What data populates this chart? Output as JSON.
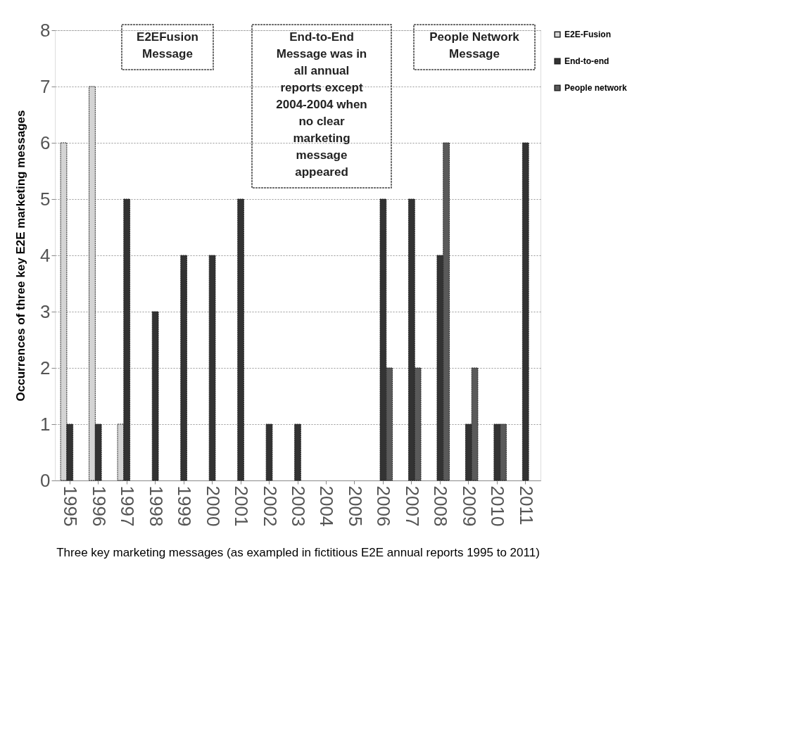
{
  "chart_data": {
    "type": "bar",
    "categories": [
      "1995",
      "1996",
      "1997",
      "1998",
      "1999",
      "2000",
      "2001",
      "2002",
      "2003",
      "2004",
      "2005",
      "2006",
      "2007",
      "2008",
      "2009",
      "2010",
      "2011"
    ],
    "series": [
      {
        "name": "E2E-Fusion",
        "color": "#d4d4d4",
        "values": [
          6,
          7,
          1,
          null,
          null,
          null,
          null,
          null,
          null,
          null,
          null,
          null,
          null,
          null,
          null,
          null,
          null
        ]
      },
      {
        "name": "End-to-end",
        "color": "#333333",
        "values": [
          1,
          1,
          5,
          3,
          4,
          4,
          5,
          1,
          1,
          null,
          null,
          5,
          5,
          4,
          1,
          1,
          6
        ]
      },
      {
        "name": "People network",
        "color": "#5a5a5a",
        "values": [
          null,
          null,
          null,
          null,
          null,
          null,
          null,
          null,
          null,
          null,
          null,
          2,
          2,
          6,
          2,
          1,
          null
        ]
      }
    ],
    "ylim": [
      0,
      8
    ],
    "yticks": [
      0,
      1,
      2,
      3,
      4,
      5,
      6,
      7,
      8
    ],
    "xlabel": "Three key marketing messages (as exampled in fictitious E2E annual reports 1995 to 2011)",
    "ylabel": "Occurrences of three key E2E marketing messages",
    "annotations": [
      "E2EFusion\nMessage",
      "End-to-End\nMessage was in\nall annual\nreports except\n2004-2004 when\nno clear\nmarketing\nmessage\nappeared",
      "People Network\nMessage"
    ],
    "grid": "y",
    "legend": "right"
  }
}
